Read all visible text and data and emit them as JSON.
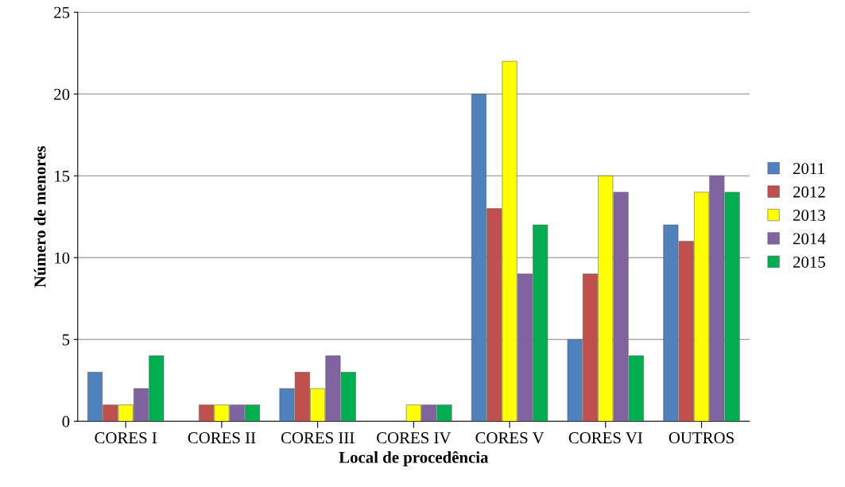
{
  "chart_data": {
    "type": "bar",
    "xlabel": "Local de procedência",
    "ylabel": "Número de menores",
    "categories": [
      "CORES I",
      "CORES II",
      "CORES III",
      "CORES IV",
      "CORES V",
      "CORES VI",
      "OUTROS"
    ],
    "series": [
      {
        "name": "2011",
        "color": "#4f81bd",
        "values": [
          3,
          null,
          2,
          null,
          20,
          5,
          12
        ]
      },
      {
        "name": "2012",
        "color": "#c0504d",
        "values": [
          1,
          1,
          3,
          null,
          13,
          9,
          11
        ]
      },
      {
        "name": "2013",
        "color": "#ffff00",
        "values": [
          1,
          1,
          2,
          1,
          22,
          15,
          14
        ]
      },
      {
        "name": "2014",
        "color": "#8064a2",
        "values": [
          2,
          1,
          4,
          1,
          9,
          14,
          15
        ]
      },
      {
        "name": "2015",
        "color": "#00b050",
        "values": [
          4,
          1,
          3,
          1,
          12,
          4,
          14
        ]
      }
    ],
    "ylim": [
      0,
      25
    ],
    "yticks": [
      0,
      5,
      10,
      15,
      20,
      25
    ],
    "grid": "y",
    "legend": "right"
  }
}
